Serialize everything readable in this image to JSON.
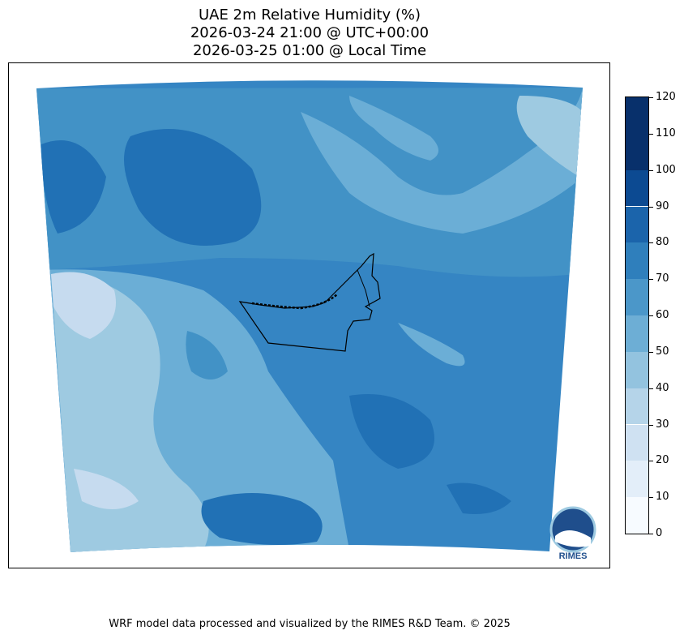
{
  "title_lines": [
    "UAE 2m Relative Humidity (%)",
    "2026-03-24 21:00 @ UTC+00:00",
    "2026-03-25 01:00 @ Local Time"
  ],
  "colorbar": {
    "ticks": [
      "0",
      "10",
      "20",
      "30",
      "40",
      "50",
      "60",
      "70",
      "80",
      "90",
      "100",
      "110",
      "120"
    ],
    "colors": [
      "#f7fbff",
      "#e3eef9",
      "#cfe1f2",
      "#b5d4e9",
      "#93c3df",
      "#6daed5",
      "#4b97c9",
      "#2f7fbc",
      "#1b64ab",
      "#0c4a92",
      "#08306b",
      "#08306b"
    ]
  },
  "map": {
    "background_fill": "#3585c3",
    "logo_text": "RIMES"
  },
  "footer": "WRF model data processed and visualized by the RIMES R&D Team. © 2025"
}
